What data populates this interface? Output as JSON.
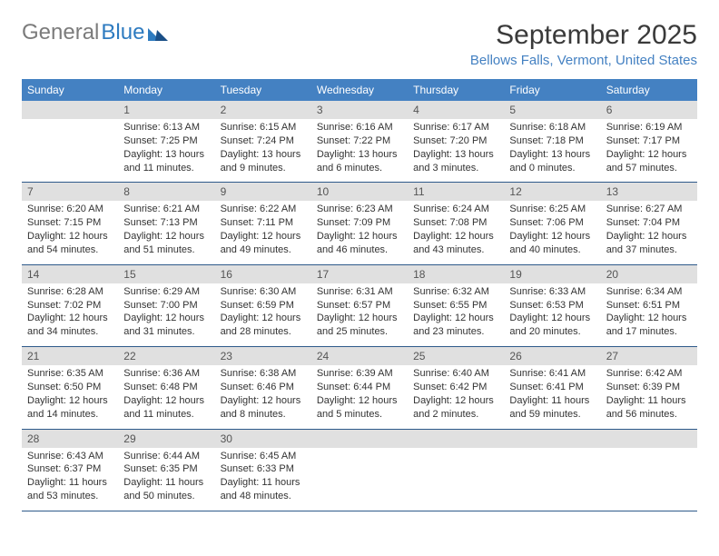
{
  "logo": {
    "text1": "General",
    "text2": "Blue"
  },
  "title": "September 2025",
  "location": "Bellows Falls, Vermont, United States",
  "colors": {
    "header_bg": "#4481c2",
    "header_text": "#ffffff",
    "daynum_bg": "#e0e0e0",
    "border": "#2e5a8a",
    "logo_gray": "#7b7b7b",
    "logo_blue": "#2e7bc0"
  },
  "day_headers": [
    "Sunday",
    "Monday",
    "Tuesday",
    "Wednesday",
    "Thursday",
    "Friday",
    "Saturday"
  ],
  "weeks": [
    [
      null,
      {
        "n": "1",
        "sr": "6:13 AM",
        "ss": "7:25 PM",
        "dl": "13 hours and 11 minutes."
      },
      {
        "n": "2",
        "sr": "6:15 AM",
        "ss": "7:24 PM",
        "dl": "13 hours and 9 minutes."
      },
      {
        "n": "3",
        "sr": "6:16 AM",
        "ss": "7:22 PM",
        "dl": "13 hours and 6 minutes."
      },
      {
        "n": "4",
        "sr": "6:17 AM",
        "ss": "7:20 PM",
        "dl": "13 hours and 3 minutes."
      },
      {
        "n": "5",
        "sr": "6:18 AM",
        "ss": "7:18 PM",
        "dl": "13 hours and 0 minutes."
      },
      {
        "n": "6",
        "sr": "6:19 AM",
        "ss": "7:17 PM",
        "dl": "12 hours and 57 minutes."
      }
    ],
    [
      {
        "n": "7",
        "sr": "6:20 AM",
        "ss": "7:15 PM",
        "dl": "12 hours and 54 minutes."
      },
      {
        "n": "8",
        "sr": "6:21 AM",
        "ss": "7:13 PM",
        "dl": "12 hours and 51 minutes."
      },
      {
        "n": "9",
        "sr": "6:22 AM",
        "ss": "7:11 PM",
        "dl": "12 hours and 49 minutes."
      },
      {
        "n": "10",
        "sr": "6:23 AM",
        "ss": "7:09 PM",
        "dl": "12 hours and 46 minutes."
      },
      {
        "n": "11",
        "sr": "6:24 AM",
        "ss": "7:08 PM",
        "dl": "12 hours and 43 minutes."
      },
      {
        "n": "12",
        "sr": "6:25 AM",
        "ss": "7:06 PM",
        "dl": "12 hours and 40 minutes."
      },
      {
        "n": "13",
        "sr": "6:27 AM",
        "ss": "7:04 PM",
        "dl": "12 hours and 37 minutes."
      }
    ],
    [
      {
        "n": "14",
        "sr": "6:28 AM",
        "ss": "7:02 PM",
        "dl": "12 hours and 34 minutes."
      },
      {
        "n": "15",
        "sr": "6:29 AM",
        "ss": "7:00 PM",
        "dl": "12 hours and 31 minutes."
      },
      {
        "n": "16",
        "sr": "6:30 AM",
        "ss": "6:59 PM",
        "dl": "12 hours and 28 minutes."
      },
      {
        "n": "17",
        "sr": "6:31 AM",
        "ss": "6:57 PM",
        "dl": "12 hours and 25 minutes."
      },
      {
        "n": "18",
        "sr": "6:32 AM",
        "ss": "6:55 PM",
        "dl": "12 hours and 23 minutes."
      },
      {
        "n": "19",
        "sr": "6:33 AM",
        "ss": "6:53 PM",
        "dl": "12 hours and 20 minutes."
      },
      {
        "n": "20",
        "sr": "6:34 AM",
        "ss": "6:51 PM",
        "dl": "12 hours and 17 minutes."
      }
    ],
    [
      {
        "n": "21",
        "sr": "6:35 AM",
        "ss": "6:50 PM",
        "dl": "12 hours and 14 minutes."
      },
      {
        "n": "22",
        "sr": "6:36 AM",
        "ss": "6:48 PM",
        "dl": "12 hours and 11 minutes."
      },
      {
        "n": "23",
        "sr": "6:38 AM",
        "ss": "6:46 PM",
        "dl": "12 hours and 8 minutes."
      },
      {
        "n": "24",
        "sr": "6:39 AM",
        "ss": "6:44 PM",
        "dl": "12 hours and 5 minutes."
      },
      {
        "n": "25",
        "sr": "6:40 AM",
        "ss": "6:42 PM",
        "dl": "12 hours and 2 minutes."
      },
      {
        "n": "26",
        "sr": "6:41 AM",
        "ss": "6:41 PM",
        "dl": "11 hours and 59 minutes."
      },
      {
        "n": "27",
        "sr": "6:42 AM",
        "ss": "6:39 PM",
        "dl": "11 hours and 56 minutes."
      }
    ],
    [
      {
        "n": "28",
        "sr": "6:43 AM",
        "ss": "6:37 PM",
        "dl": "11 hours and 53 minutes."
      },
      {
        "n": "29",
        "sr": "6:44 AM",
        "ss": "6:35 PM",
        "dl": "11 hours and 50 minutes."
      },
      {
        "n": "30",
        "sr": "6:45 AM",
        "ss": "6:33 PM",
        "dl": "11 hours and 48 minutes."
      },
      null,
      null,
      null,
      null
    ]
  ],
  "labels": {
    "sunrise": "Sunrise: ",
    "sunset": "Sunset: ",
    "daylight": "Daylight: "
  }
}
